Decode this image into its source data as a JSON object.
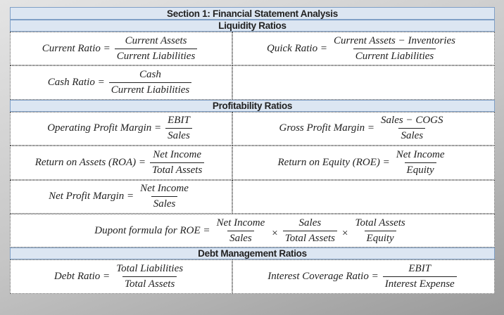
{
  "title": "Section 1: Financial Statement Analysis",
  "sections": [
    {
      "heading": "Liquidity Ratios",
      "rows": [
        {
          "cells": [
            {
              "label": "Current Ratio =",
              "numerator": "Current Assets",
              "denominator": "Current Liabilities"
            },
            {
              "label": "Quick Ratio =",
              "numerator": "Current Assets − Inventories",
              "denominator": "Current Liabilities"
            }
          ]
        },
        {
          "cells": [
            {
              "label": "Cash Ratio =",
              "numerator": "Cash",
              "denominator": "Current Liabilities"
            }
          ]
        }
      ]
    },
    {
      "heading": "Profitability Ratios",
      "rows": [
        {
          "cells": [
            {
              "label": "Operating Profit Margin =",
              "numerator": "EBIT",
              "denominator": "Sales"
            },
            {
              "label": "Gross Profit Margin =",
              "numerator": "Sales − COGS",
              "denominator": "Sales"
            }
          ]
        },
        {
          "cells": [
            {
              "label": "Return on Assets (ROA) =",
              "numerator": "Net Income",
              "denominator": "Total Assets"
            },
            {
              "label": "Return on Equity (ROE) =",
              "numerator": "Net Income",
              "denominator": "Equity"
            }
          ]
        },
        {
          "cells": [
            {
              "label": "Net Profit Margin =",
              "numerator": "Net Income",
              "denominator": "Sales"
            }
          ]
        },
        {
          "cells": [
            {
              "label": "Dupont formula for ROE =",
              "operator": "×",
              "factors": [
                {
                  "numerator": "Net Income",
                  "denominator": "Sales"
                },
                {
                  "numerator": "Sales",
                  "denominator": "Total Assets"
                },
                {
                  "numerator": "Total Assets",
                  "denominator": "Equity"
                }
              ]
            }
          ]
        }
      ]
    },
    {
      "heading": "Debt Management Ratios",
      "rows": [
        {
          "cells": [
            {
              "label": "Debt Ratio =",
              "numerator": "Total Liabilities",
              "denominator": "Total Assets"
            },
            {
              "label": "Interest Coverage Ratio  =",
              "numerator": "EBIT",
              "denominator": "Interest Expense"
            }
          ]
        }
      ]
    }
  ]
}
